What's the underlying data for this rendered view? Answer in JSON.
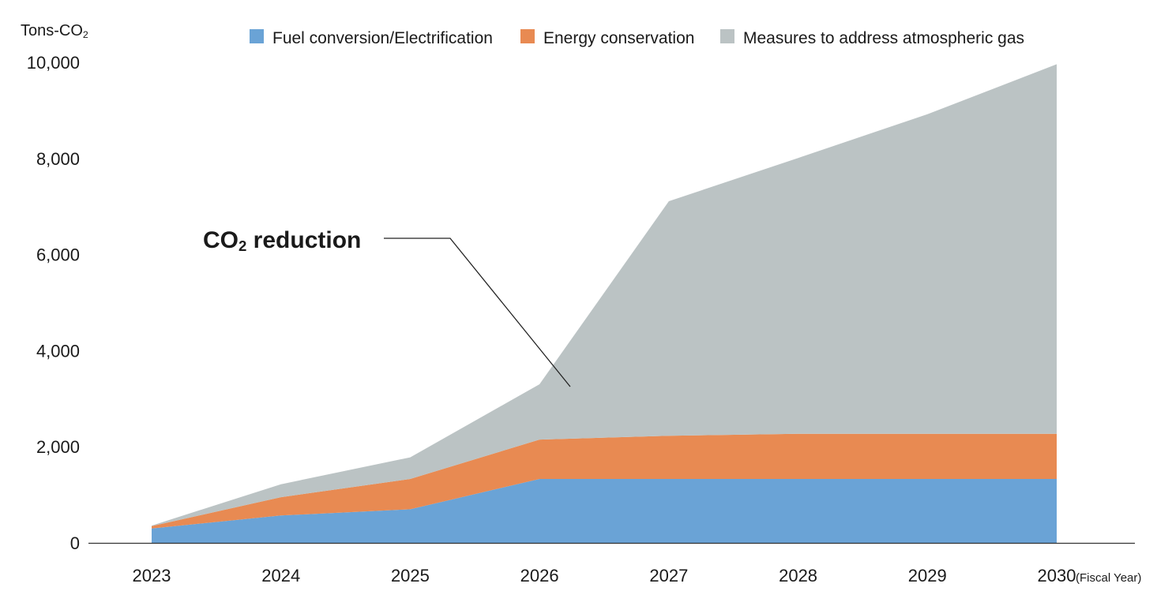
{
  "chart_data": {
    "type": "area",
    "stacked": true,
    "y_unit_label": "Tons-CO",
    "y_unit_subscript": "2",
    "x_suffix_label": "(Fiscal Year)",
    "categories": [
      "2023",
      "2024",
      "2025",
      "2026",
      "2027",
      "2028",
      "2029",
      "2030"
    ],
    "ylim": [
      0,
      10000
    ],
    "yticks": [
      0,
      2000,
      4000,
      6000,
      8000,
      10000
    ],
    "ytick_labels": [
      "0",
      "2,000",
      "4,000",
      "6,000",
      "8,000",
      "10,000"
    ],
    "grid": false,
    "legend_position": "top",
    "series": [
      {
        "name": "Fuel conversion/Electrification",
        "color": "#6aa3d6",
        "values": [
          300,
          570,
          700,
          1330,
          1330,
          1330,
          1330,
          1330
        ]
      },
      {
        "name": "Energy conservation",
        "color": "#e88a52",
        "values": [
          50,
          380,
          630,
          820,
          900,
          940,
          940,
          940
        ]
      },
      {
        "name": "Measures to address atmospheric gas",
        "color": "#bbc3c4",
        "values": [
          10,
          270,
          450,
          1150,
          4880,
          5740,
          6650,
          7690
        ]
      }
    ],
    "annotation": {
      "text": "CO",
      "subscript": "2",
      "suffix": " reduction"
    }
  }
}
